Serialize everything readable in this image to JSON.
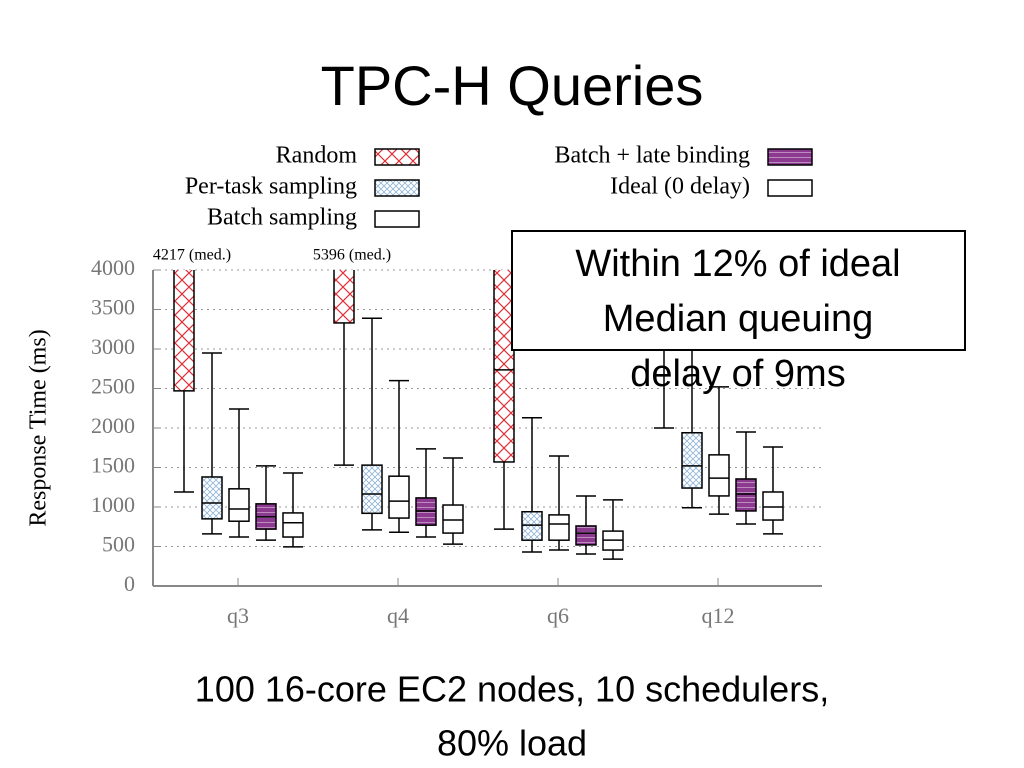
{
  "chart_data": {
    "type": "box",
    "title": "TPC-H Queries",
    "subtitle": [
      "100 16-core EC2 nodes, 10 schedulers,",
      "80% load"
    ],
    "annotation": [
      "Within 12% of ideal",
      "Median queuing",
      "delay of 9ms"
    ],
    "y_label": "Response Time (ms)",
    "categories": [
      "q3",
      "q4",
      "q6",
      "q12"
    ],
    "ylim": [
      0,
      4000
    ],
    "yticks": [
      0,
      500,
      1000,
      1500,
      2000,
      2500,
      3000,
      3500,
      4000
    ],
    "grid": true,
    "series": [
      {
        "name": "Random",
        "color": "#e0303a",
        "fill": "#ffffff",
        "hatch": "diagonal-cross",
        "values": [
          {
            "low": 1190,
            "q1": 2470,
            "median": 4217,
            "q3": null,
            "high": null
          },
          {
            "low": 1530,
            "q1": 3330,
            "median": 5396,
            "q3": null,
            "high": null
          },
          {
            "low": 720,
            "q1": 1570,
            "median": 2735,
            "q3": null,
            "high": null
          },
          {
            "low": 2000,
            "q1": null,
            "median": null,
            "q3": null,
            "high": null
          }
        ],
        "value_labels": [
          "4217 (med.)",
          "5396 (med.)",
          null,
          null
        ]
      },
      {
        "name": "Per-task sampling",
        "color": "#8fb4d8",
        "fill": "#ffffff",
        "hatch": "fine-cross",
        "values": [
          {
            "low": 660,
            "q1": 850,
            "median": 1050,
            "q3": 1380,
            "high": 2950
          },
          {
            "low": 710,
            "q1": 920,
            "median": 1165,
            "q3": 1530,
            "high": 3390
          },
          {
            "low": 430,
            "q1": 580,
            "median": 770,
            "q3": 940,
            "high": 2130
          },
          {
            "low": 990,
            "q1": 1240,
            "median": 1520,
            "q3": 1940,
            "high": null
          }
        ]
      },
      {
        "name": "Batch sampling",
        "color": "#000000",
        "fill": "#ffffff",
        "hatch": "none",
        "values": [
          {
            "low": 620,
            "q1": 820,
            "median": 975,
            "q3": 1230,
            "high": 2240
          },
          {
            "low": 680,
            "q1": 860,
            "median": 1075,
            "q3": 1390,
            "high": 2600
          },
          {
            "low": 455,
            "q1": 580,
            "median": 785,
            "q3": 900,
            "high": 1645
          },
          {
            "low": 910,
            "q1": 1140,
            "median": 1365,
            "q3": 1660,
            "high": 2520
          }
        ]
      },
      {
        "name": "Batch + late binding",
        "color": "#c9a0cc",
        "fill": "#8b3a8f",
        "hatch": "horizontal",
        "values": [
          {
            "low": 580,
            "q1": 720,
            "median": 875,
            "q3": 1040,
            "high": 1520
          },
          {
            "low": 620,
            "q1": 770,
            "median": 950,
            "q3": 1115,
            "high": 1735
          },
          {
            "low": 405,
            "q1": 520,
            "median": 670,
            "q3": 760,
            "high": 1140
          },
          {
            "low": 785,
            "q1": 950,
            "median": 1165,
            "q3": 1355,
            "high": 1950
          }
        ]
      },
      {
        "name": "Ideal (0 delay)",
        "color": "#000000",
        "fill": "#ffffff",
        "hatch": "none",
        "values": [
          {
            "low": 495,
            "q1": 620,
            "median": 800,
            "q3": 925,
            "high": 1430
          },
          {
            "low": 530,
            "q1": 670,
            "median": 835,
            "q3": 1025,
            "high": 1620
          },
          {
            "low": 340,
            "q1": 455,
            "median": 580,
            "q3": 695,
            "high": 1090
          },
          {
            "low": 660,
            "q1": 835,
            "median": 1000,
            "q3": 1190,
            "high": 1760
          }
        ]
      }
    ]
  }
}
